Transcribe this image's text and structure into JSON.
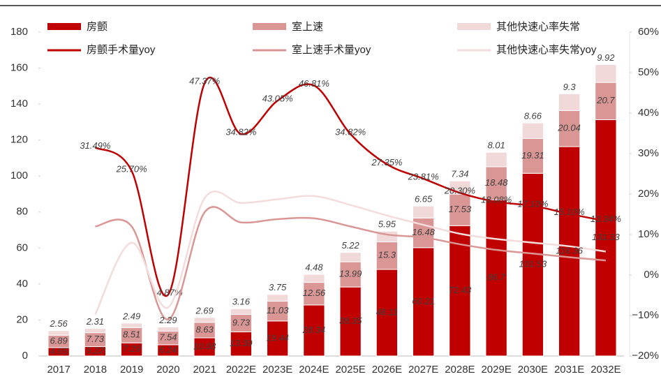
{
  "chart_data": {
    "type": "bar",
    "categories": [
      "2017",
      "2018",
      "2019",
      "2020",
      "2021",
      "2022E",
      "2023E",
      "2024E",
      "2025E",
      "2026E",
      "2027E",
      "2028E",
      "2029E",
      "2030E",
      "2031E",
      "2032E"
    ],
    "series": [
      {
        "name": "房颤",
        "color": "#c00000",
        "values": [
          4.65,
          5.22,
          7.29,
          6.24,
          10.08,
          13.39,
          19.44,
          28.34,
          38.35,
          48.11,
          60.21,
          72.43,
          86.7,
          101.53,
          116.36,
          131.33
        ]
      },
      {
        "name": "室上速",
        "color": "#d99694",
        "values": [
          6.89,
          7.73,
          8.51,
          7.54,
          8.63,
          9.73,
          11.03,
          12.56,
          13.99,
          15.3,
          16.48,
          17.53,
          18.48,
          19.31,
          20.04,
          20.7
        ]
      },
      {
        "name": "其他快速心率失常",
        "color": "#f2d9d9",
        "values": [
          2.56,
          2.31,
          2.49,
          2.29,
          2.69,
          3.16,
          3.75,
          4.48,
          5.22,
          5.95,
          6.65,
          7.34,
          8.01,
          8.66,
          9.3,
          9.92
        ]
      },
      {
        "name": "房颤手术量yoy",
        "type": "line",
        "axis": "y2",
        "color": "#c00000",
        "values": [
          null,
          31.49,
          25.7,
          -4.87,
          47.37,
          34.82,
          43.05,
          46.81,
          34.82,
          27.35,
          23.81,
          20.3,
          18.08,
          17.1,
          15.1,
          13.34
        ],
        "value_labels": [
          null,
          "31.49%",
          "25.70%",
          "-4.87%",
          "47.37%",
          "34.82%",
          "43.05%",
          "46.81%",
          "34.82%",
          "27.35%",
          "23.81%",
          "20.30%",
          "18.08%",
          "17.10%",
          "15.10%",
          "13.34%"
        ]
      },
      {
        "name": "室上速手术量yoy",
        "type": "line",
        "axis": "y2",
        "color": "#d99694",
        "values": [
          null,
          12,
          12,
          -11,
          15.5,
          13,
          13.8,
          14,
          12,
          10,
          9.3,
          7.6,
          6.2,
          5.3,
          4.4,
          3.6
        ]
      },
      {
        "name": "其他快速心率失常yoy",
        "type": "line",
        "axis": "y2",
        "color": "#f4dcdc",
        "values": [
          null,
          -9.8,
          8,
          -8,
          19,
          17.8,
          18.7,
          19.5,
          17.3,
          14.7,
          12.4,
          10.2,
          8.9,
          8,
          7.1,
          5.8
        ]
      }
    ],
    "ylim": [
      0,
      180
    ],
    "yticks": [
      0,
      20,
      40,
      60,
      80,
      100,
      120,
      140,
      160,
      180
    ],
    "y2lim": [
      -20,
      60
    ],
    "y2ticks": [
      {
        "value": -20,
        "label": "−20%"
      },
      {
        "value": -10,
        "label": "−10%"
      },
      {
        "value": 0,
        "label": "0%"
      },
      {
        "value": 10,
        "label": "10%"
      },
      {
        "value": 20,
        "label": "20%"
      },
      {
        "value": 30,
        "label": "30%"
      },
      {
        "value": 40,
        "label": "40%"
      },
      {
        "value": 50,
        "label": "50%"
      },
      {
        "value": 60,
        "label": "60%"
      }
    ]
  }
}
